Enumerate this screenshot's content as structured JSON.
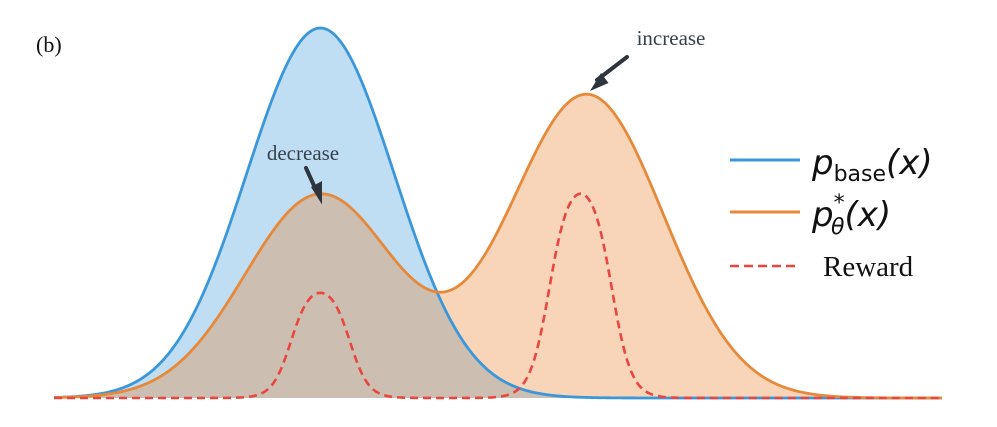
{
  "chart_data": {
    "type": "area",
    "panel_label": "(b)",
    "title": "",
    "xlabel": "",
    "ylabel": "",
    "axes_visible": false,
    "grid": false,
    "legend_position": "right",
    "xlim": [
      0,
      100
    ],
    "ylim": [
      0,
      1
    ],
    "series": [
      {
        "name": "p_base(x)",
        "legend_main": "p",
        "legend_sub": "base",
        "legend_tail": "(x)",
        "style": "solid-filled",
        "color": "#3A97DA",
        "fill": "#BFDDF3",
        "components": [
          {
            "weight": 1.0,
            "mean": 30,
            "sd": 8.3
          }
        ]
      },
      {
        "name": "p*_θ(x)",
        "legend_main": "p",
        "legend_sub": "θ",
        "legend_sup": "*",
        "legend_tail": "(x)",
        "style": "solid-filled",
        "color": "#E6893A",
        "fill": "#F8D5B8",
        "components": [
          {
            "weight": 0.55,
            "mean": 30,
            "sd": 8.5
          },
          {
            "weight": 0.82,
            "mean": 60,
            "sd": 8.6
          }
        ]
      },
      {
        "name": "Reward",
        "legend_main": "Reward",
        "style": "dashed",
        "color": "#E8463F",
        "plateaus": [
          {
            "center": 30,
            "half_width": 3.3,
            "height": 0.31,
            "edge": 1.05
          },
          {
            "center": 59.3,
            "half_width": 3.5,
            "height": 0.6,
            "edge": 1.1
          }
        ]
      }
    ],
    "annotations": [
      {
        "text": "decrease",
        "target_series": "p*_θ(x)",
        "at_x": 30,
        "direction": "down"
      },
      {
        "text": "increase",
        "target_series": "p*_θ(x)",
        "at_x": 60,
        "direction": "down-left"
      }
    ]
  }
}
